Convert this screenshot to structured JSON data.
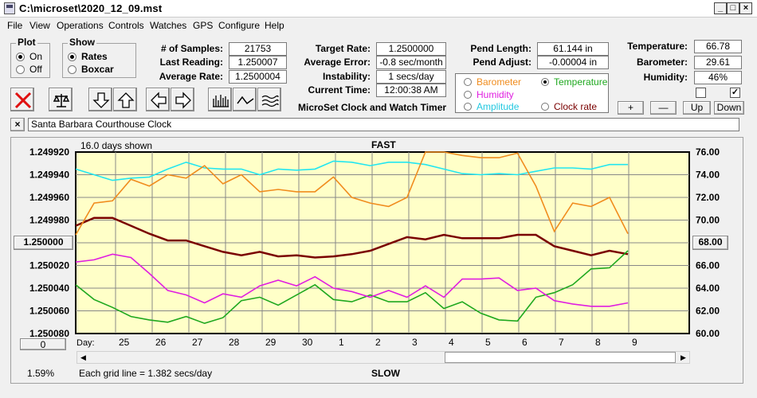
{
  "window": {
    "title": "C:\\microset\\2020_12_09.mst"
  },
  "menu": [
    "File",
    "View",
    "Operations",
    "Controls",
    "Watches",
    "GPS",
    "Configure",
    "Help"
  ],
  "plot": {
    "title": "Plot",
    "on": "On",
    "off": "Off"
  },
  "show": {
    "title": "Show",
    "rates": "Rates",
    "boxcar": "Boxcar"
  },
  "stats": {
    "samples_label": "# of Samples:",
    "samples": "21753",
    "last_label": "Last Reading:",
    "last": "1.250007",
    "avg_label": "Average Rate:",
    "avg": "1.2500004",
    "target_label": "Target Rate:",
    "target": "1.2500000",
    "err_label": "Average Error:",
    "err": "-0.8 sec/month",
    "inst_label": "Instability:",
    "inst": "1 secs/day",
    "time_label": "Current Time:",
    "time": "12:00:38 AM",
    "pendlen_label": "Pend Length:",
    "pendlen": "61.144 in",
    "pendadj_label": "Pend Adjust:",
    "pendadj": "-0.00004 in",
    "temp_label": "Temperature:",
    "temp": "66.78",
    "baro_label": "Barometer:",
    "baro": "29.61",
    "hum_label": "Humidity:",
    "hum": "46%"
  },
  "options": {
    "barometer": "Barometer",
    "temperature": "Temperature",
    "humidity": "Humidity",
    "amplitude": "Amplitude",
    "clock_rate": "Clock rate"
  },
  "app_name": "MicroSet Clock and Watch Timer",
  "buttons": {
    "plus": "+",
    "minus": "—",
    "up": "Up",
    "down": "Down"
  },
  "clock_name": "Santa Barbara Courthouse Clock",
  "close_x": "×",
  "colors": {
    "plot_bg": "#ffffc8",
    "rate": "#7a0000",
    "temperature": "#1fa81f",
    "humidity": "#e01ee0",
    "amplitude": "#22e6f0",
    "barometer": "#f08c1e"
  },
  "chart": {
    "days_shown": "16.0 days shown",
    "fast": "FAST",
    "slow": "SLOW",
    "grid_note": "Each grid line = 1.382 secs/day",
    "percent": "1.59%",
    "day_label": "Day:",
    "left_ref": "1.250000",
    "right_ref": "68.00",
    "bottom_btn": "0"
  },
  "chart_data": {
    "type": "line",
    "left_axis": [
      "1.249920",
      "1.249940",
      "1.249960",
      "1.249980",
      "1.250000",
      "1.250020",
      "1.250040",
      "1.250060",
      "1.250080"
    ],
    "right_axis": [
      "76.00",
      "74.00",
      "72.00",
      "70.00",
      "68.00",
      "66.00",
      "64.00",
      "62.00",
      "60.00"
    ],
    "ylim_left": [
      1.24992,
      1.25008
    ],
    "ylim_right": [
      60,
      76
    ],
    "days": [
      "25",
      "26",
      "27",
      "28",
      "29",
      "30",
      "1",
      "2",
      "3",
      "4",
      "5",
      "6",
      "7",
      "8",
      "9"
    ],
    "x": [
      0,
      0.5,
      1,
      1.5,
      2,
      2.5,
      3,
      3.5,
      4,
      4.5,
      5,
      5.5,
      6,
      6.5,
      7,
      7.5,
      8,
      8.5,
      9,
      9.5,
      10,
      10.5,
      11,
      11.5,
      12,
      12.5,
      13,
      13.5,
      14,
      14.5,
      15
    ],
    "series": [
      {
        "name": "Clock rate",
        "axis": "left",
        "color": "#7a0000",
        "values": [
          1.249985,
          1.249978,
          1.249978,
          1.249985,
          1.249992,
          1.249998,
          1.249998,
          1.250003,
          1.250008,
          1.250011,
          1.250008,
          1.250012,
          1.250011,
          1.250013,
          1.250012,
          1.25001,
          1.250007,
          1.250001,
          1.249995,
          1.249997,
          1.249993,
          1.249996,
          1.249996,
          1.249996,
          1.249993,
          1.249993,
          1.250003,
          1.250007,
          1.250011,
          1.250007,
          1.25001
        ]
      },
      {
        "name": "Temperature",
        "axis": "right",
        "color": "#1fa81f",
        "values": [
          64.3,
          63.0,
          62.3,
          61.5,
          61.2,
          61.0,
          61.5,
          60.9,
          61.4,
          62.9,
          63.2,
          62.5,
          63.4,
          64.3,
          63.0,
          62.8,
          63.4,
          62.8,
          62.8,
          63.6,
          62.2,
          62.8,
          61.8,
          61.2,
          61.1,
          63.2,
          63.6,
          64.3,
          65.7,
          65.8,
          67.3
        ]
      },
      {
        "name": "Humidity",
        "axis": "left",
        "color": "#e01ee0",
        "values": [
          1.250017,
          1.250015,
          1.25001,
          1.250013,
          1.250027,
          1.250042,
          1.250046,
          1.250053,
          1.250045,
          1.250048,
          1.250038,
          1.250033,
          1.250038,
          1.25003,
          1.25004,
          1.250043,
          1.250048,
          1.250042,
          1.250048,
          1.250038,
          1.250048,
          1.250032,
          1.250032,
          1.250031,
          1.250042,
          1.25004,
          1.250051,
          1.250054,
          1.250056,
          1.250056,
          1.250053
        ]
      },
      {
        "name": "Amplitude",
        "axis": "left",
        "color": "#22e6f0",
        "values": [
          1.249935,
          1.24994,
          1.249945,
          1.249943,
          1.249942,
          1.249935,
          1.249929,
          1.249934,
          1.249935,
          1.249935,
          1.24994,
          1.249935,
          1.249936,
          1.249935,
          1.249928,
          1.249929,
          1.249932,
          1.249929,
          1.249929,
          1.249931,
          1.249935,
          1.249939,
          1.24994,
          1.249939,
          1.24994,
          1.249937,
          1.249934,
          1.249934,
          1.249935,
          1.249931,
          1.249931
        ]
      },
      {
        "name": "Barometer",
        "axis": "left",
        "color": "#f08c1e",
        "values": [
          1.249993,
          1.249965,
          1.249963,
          1.249944,
          1.24995,
          1.24994,
          1.249943,
          1.249932,
          1.249948,
          1.24994,
          1.249955,
          1.249953,
          1.249955,
          1.249955,
          1.249942,
          1.24996,
          1.249965,
          1.249968,
          1.24996,
          1.24992,
          1.24992,
          1.249923,
          1.249925,
          1.249925,
          1.249921,
          1.24995,
          1.24999,
          1.249965,
          1.249968,
          1.24996,
          1.249992
        ]
      }
    ]
  }
}
